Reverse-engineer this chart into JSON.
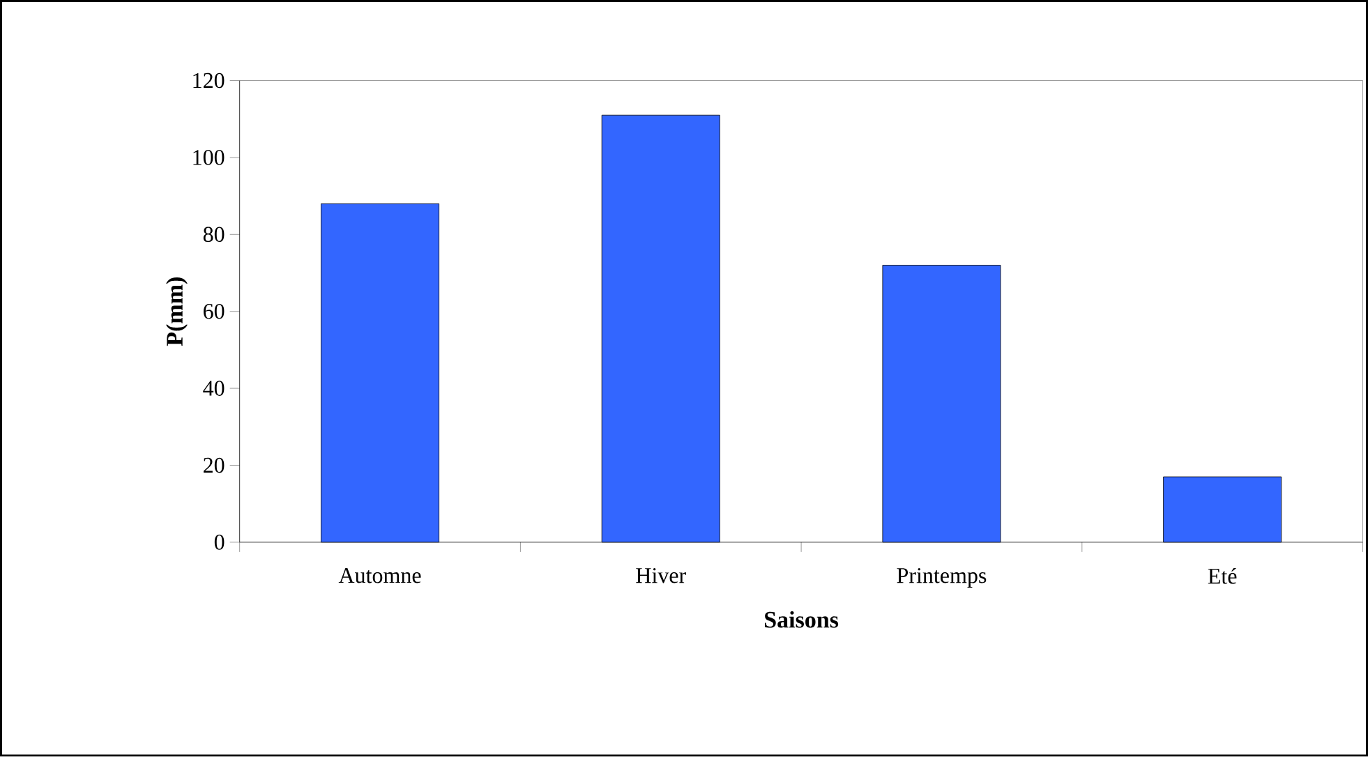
{
  "chart_data": {
    "type": "bar",
    "xlabel": "Saisons",
    "ylabel": "P(mm)",
    "categories": [
      "Automne",
      "Hiver",
      "Printemps",
      "Eté"
    ],
    "values": [
      88,
      111,
      72,
      17
    ],
    "color": "#3366ff",
    "ylim": [
      0,
      120
    ],
    "yticks": [
      0,
      20,
      40,
      60,
      80,
      100,
      120
    ],
    "grid": false
  }
}
